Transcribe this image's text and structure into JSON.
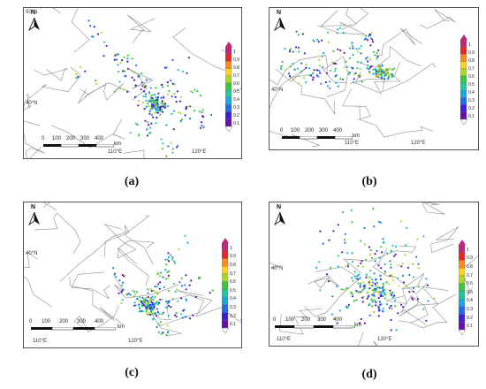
{
  "panels": [
    {
      "label": "(a)",
      "north": "N",
      "lat_labels": [
        "50°N",
        "40°N"
      ],
      "lon_labels": [
        "110°E",
        "120°E"
      ],
      "scale_labels": [
        "0",
        "100",
        "200",
        "300",
        "400"
      ],
      "scale_unit": "km",
      "colorbar_ticks": [
        "1",
        "0.9",
        "0.8",
        "0.7",
        "0.6",
        "0.5",
        "0.4",
        "0.3",
        "0.2",
        "0.1"
      ]
    },
    {
      "label": "(b)",
      "north": "N",
      "lat_labels": [
        "40°N"
      ],
      "lon_labels": [
        "110°E",
        "120°E"
      ],
      "scale_labels": [
        "0",
        "100",
        "200",
        "300",
        "400"
      ],
      "scale_unit": "km",
      "colorbar_ticks": [
        "1",
        "0.9",
        "0.8",
        "0.7",
        "0.6",
        "0.5",
        "0.4",
        "0.3",
        "0.2",
        "0.1"
      ]
    },
    {
      "label": "(c)",
      "north": "N",
      "lat_labels": [
        "40°N"
      ],
      "lon_labels": [
        "110°E",
        "120°E"
      ],
      "scale_labels": [
        "0",
        "100",
        "200",
        "300",
        "400"
      ],
      "scale_unit": "km",
      "colorbar_ticks": [
        "1",
        "0.9",
        "0.8",
        "0.7",
        "0.6",
        "0.5",
        "0.4",
        "0.3",
        "0.2",
        "0.1"
      ]
    },
    {
      "label": "(d)",
      "north": "N",
      "lat_labels": [
        "40°N"
      ],
      "lon_labels": [
        "110°E",
        "120°E"
      ],
      "scale_labels": [
        "0",
        "100",
        "200",
        "300",
        "400"
      ],
      "scale_unit": "km",
      "colorbar_ticks": [
        "1",
        "0.9",
        "0.8",
        "0.7",
        "0.6",
        "0.5",
        "0.4",
        "0.3",
        "0.2",
        "0.1"
      ]
    }
  ],
  "colors": {
    "scale": [
      "#6a0dad",
      "#3a1fd6",
      "#1e6ee8",
      "#18a7e0",
      "#22c7a0",
      "#3cc83c",
      "#a8d82a",
      "#ffd21e",
      "#ff8a1e",
      "#e8262a",
      "#c0247c"
    ]
  }
}
